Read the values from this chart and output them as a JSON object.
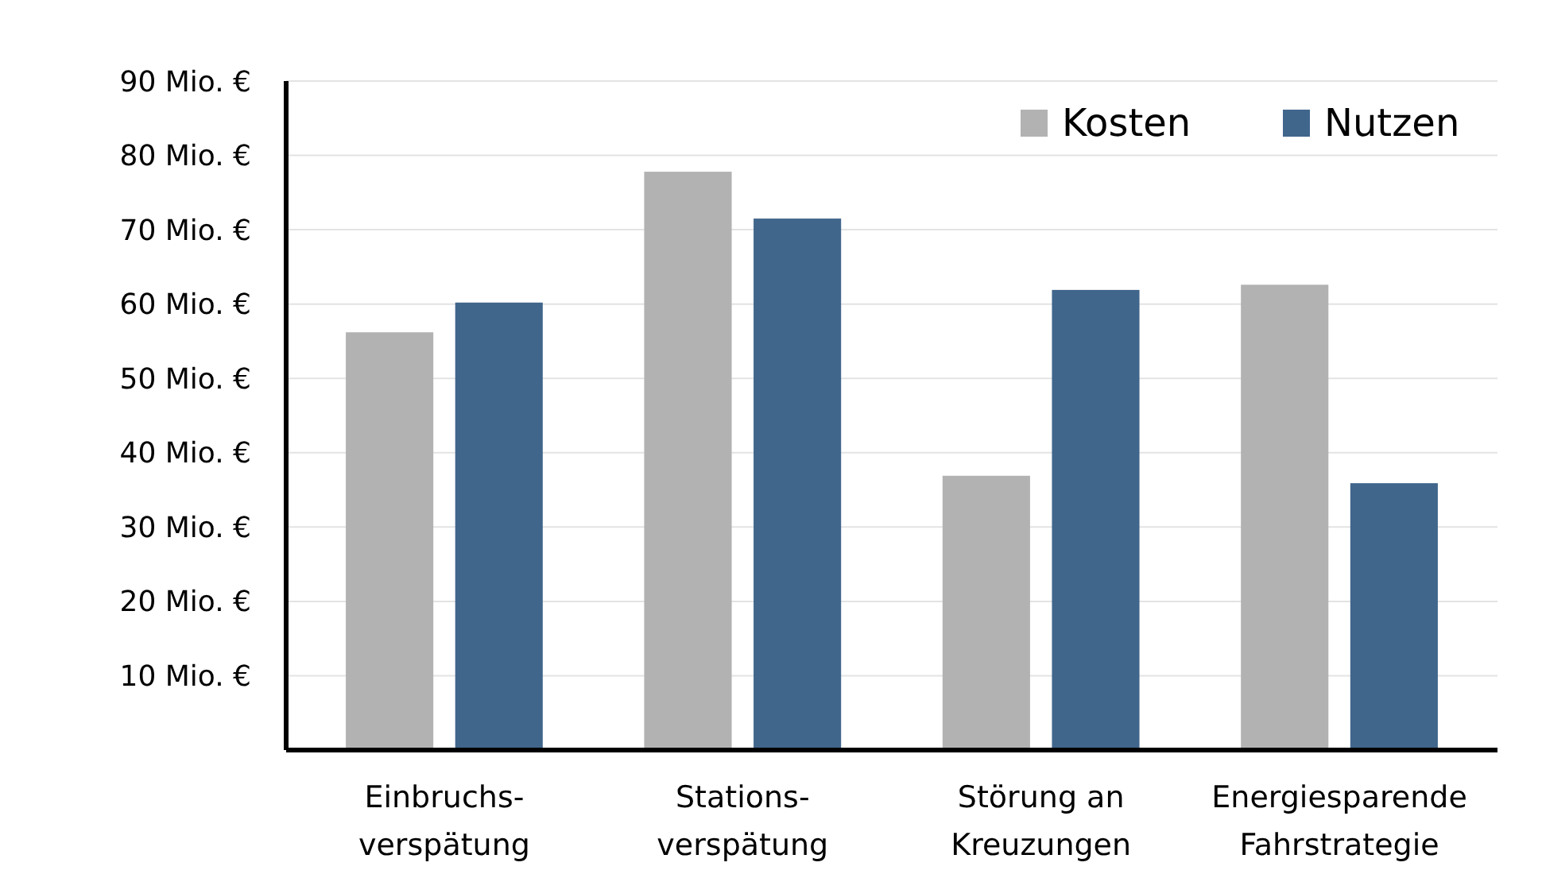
{
  "chart_data": {
    "type": "bar",
    "categories": [
      "Einbruchs-\nverspätung",
      "Stations-\nverspätung",
      "Störung an\nKreuzungen",
      "Energiesparende\nFahrstrategie"
    ],
    "series": [
      {
        "name": "Kosten",
        "color": "#b2b2b2",
        "values": [
          56.2,
          77.8,
          36.9,
          62.6
        ]
      },
      {
        "name": "Nutzen",
        "color": "#41668c",
        "values": [
          60.2,
          71.5,
          61.9,
          35.9
        ]
      }
    ],
    "ylim": [
      0,
      90
    ],
    "yticks": [
      {
        "value": 10,
        "label": "10 Mio. €"
      },
      {
        "value": 20,
        "label": "20 Mio. €"
      },
      {
        "value": 30,
        "label": "30 Mio. €"
      },
      {
        "value": 40,
        "label": "40 Mio. €"
      },
      {
        "value": 50,
        "label": "50 Mio. €"
      },
      {
        "value": 60,
        "label": "60 Mio. €"
      },
      {
        "value": 70,
        "label": "70 Mio. €"
      },
      {
        "value": 80,
        "label": "80 Mio. €"
      },
      {
        "value": 90,
        "label": "90 Mio. €"
      }
    ],
    "grid": "y",
    "legend": "top right"
  }
}
